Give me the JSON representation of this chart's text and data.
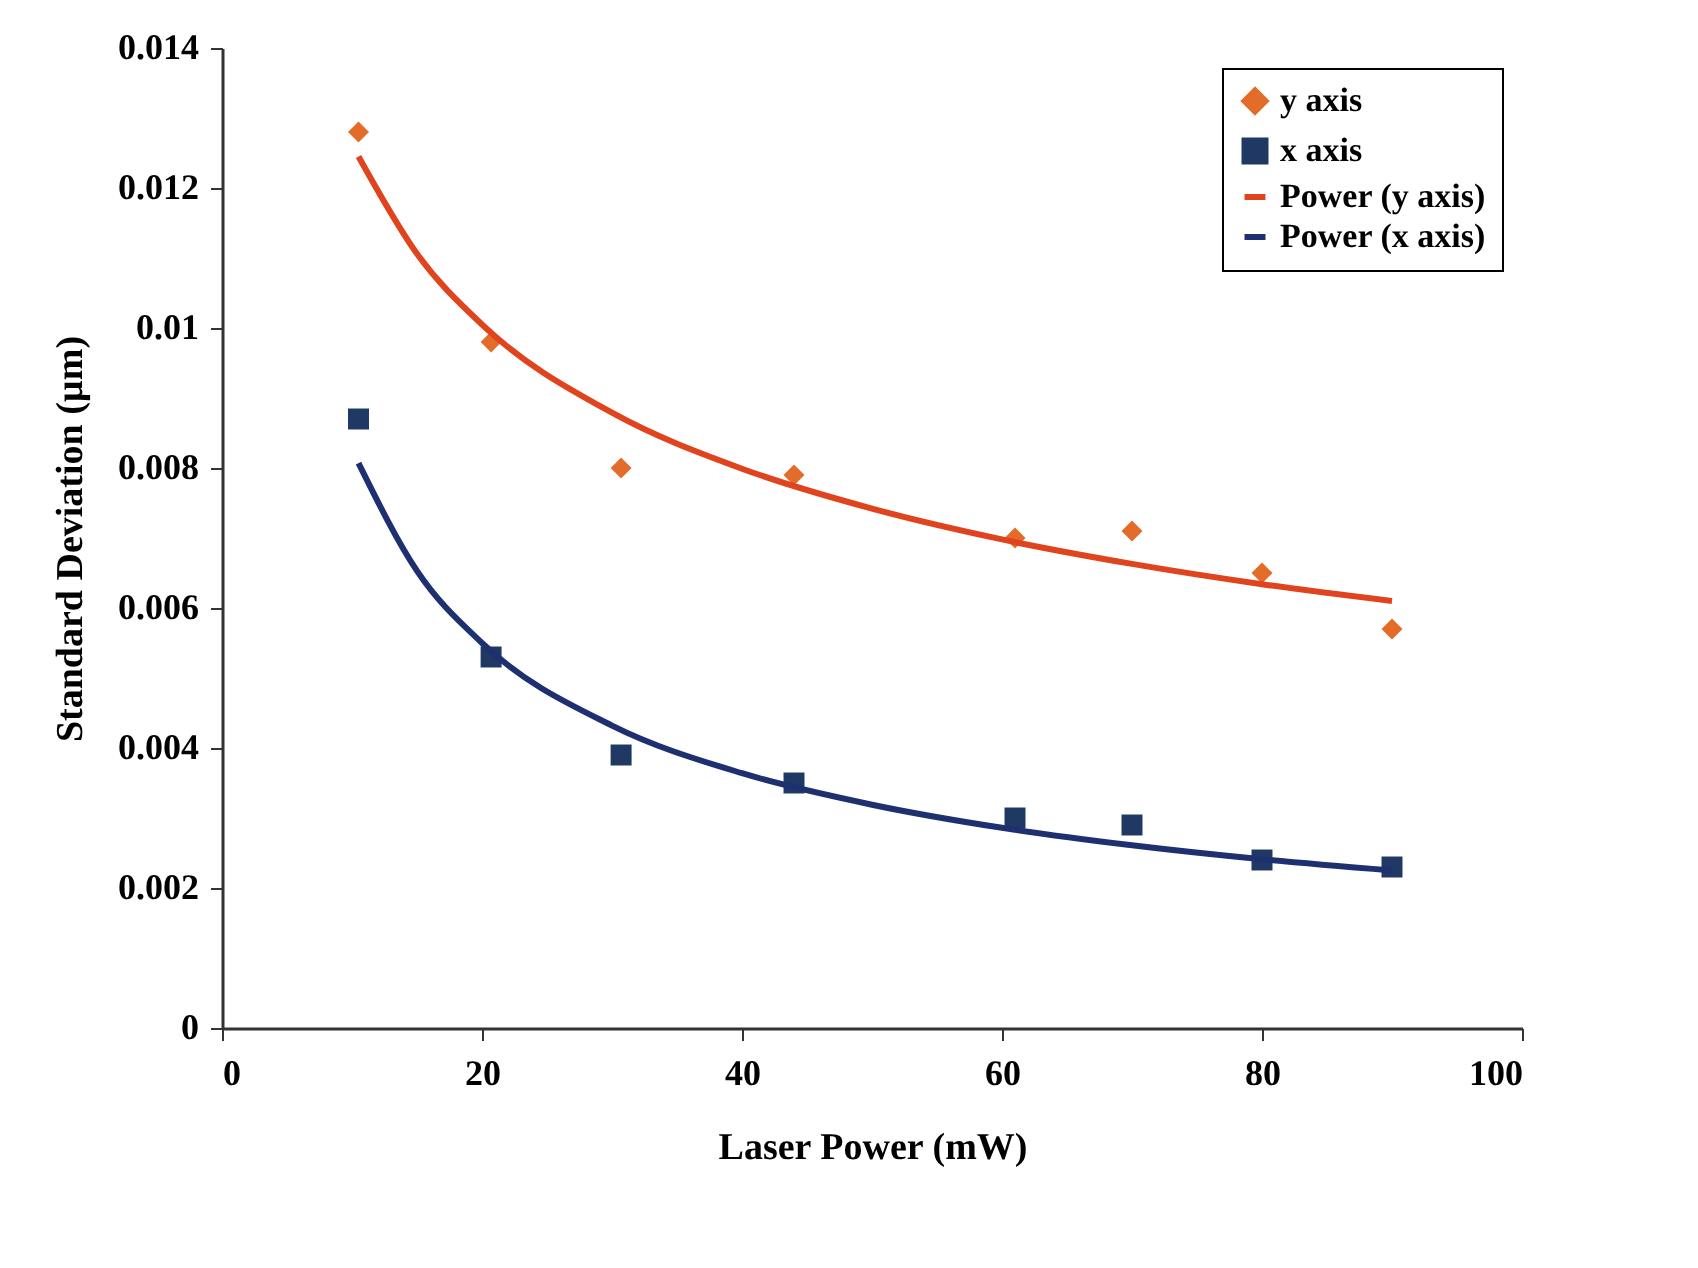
{
  "chart_data": {
    "type": "scatter",
    "xlabel": "Laser Power (mW)",
    "ylabel": "Standard Deviation (µm)",
    "xlim": [
      0,
      100
    ],
    "xticks": [
      0,
      20,
      40,
      60,
      80,
      100
    ],
    "ylim": [
      0,
      0.014
    ],
    "yticks": [
      0,
      0.002,
      0.004,
      0.006,
      0.008,
      0.01,
      0.012,
      0.014
    ],
    "grid": false,
    "legend": "top right",
    "series": [
      {
        "name": "y axis",
        "marker": "diamond",
        "color": "#e36c2a",
        "x": [
          10.5,
          20.7,
          30.7,
          44,
          61,
          70,
          80,
          90
        ],
        "values": [
          0.0128,
          0.0098,
          0.008,
          0.0079,
          0.007,
          0.0071,
          0.0065,
          0.0057
        ]
      },
      {
        "name": "x axis",
        "marker": "square",
        "color": "#1f3864",
        "x": [
          10.5,
          20.7,
          30.7,
          44,
          61,
          70,
          80,
          90
        ],
        "values": [
          0.0087,
          0.0053,
          0.0039,
          0.0035,
          0.003,
          0.0029,
          0.0024,
          0.0023
        ]
      },
      {
        "name": "Power (y axis)",
        "type": "line",
        "marker": "none",
        "color": "#e0441e",
        "x": [
          10.5,
          15,
          20,
          30,
          40,
          50,
          60,
          70,
          80,
          90
        ],
        "values": [
          0.01245,
          0.01106,
          0.01005,
          0.00879,
          0.00799,
          0.00742,
          0.00698,
          0.00663,
          0.00634,
          0.0061
        ]
      },
      {
        "name": "Power (x axis)",
        "type": "line",
        "marker": "none",
        "color": "#1f3070",
        "x": [
          10.5,
          15,
          20,
          30,
          40,
          50,
          60,
          70,
          80,
          90
        ],
        "values": [
          0.00807,
          0.00653,
          0.0055,
          0.00432,
          0.00364,
          0.00319,
          0.00286,
          0.00261,
          0.00241,
          0.00225
        ]
      }
    ]
  }
}
